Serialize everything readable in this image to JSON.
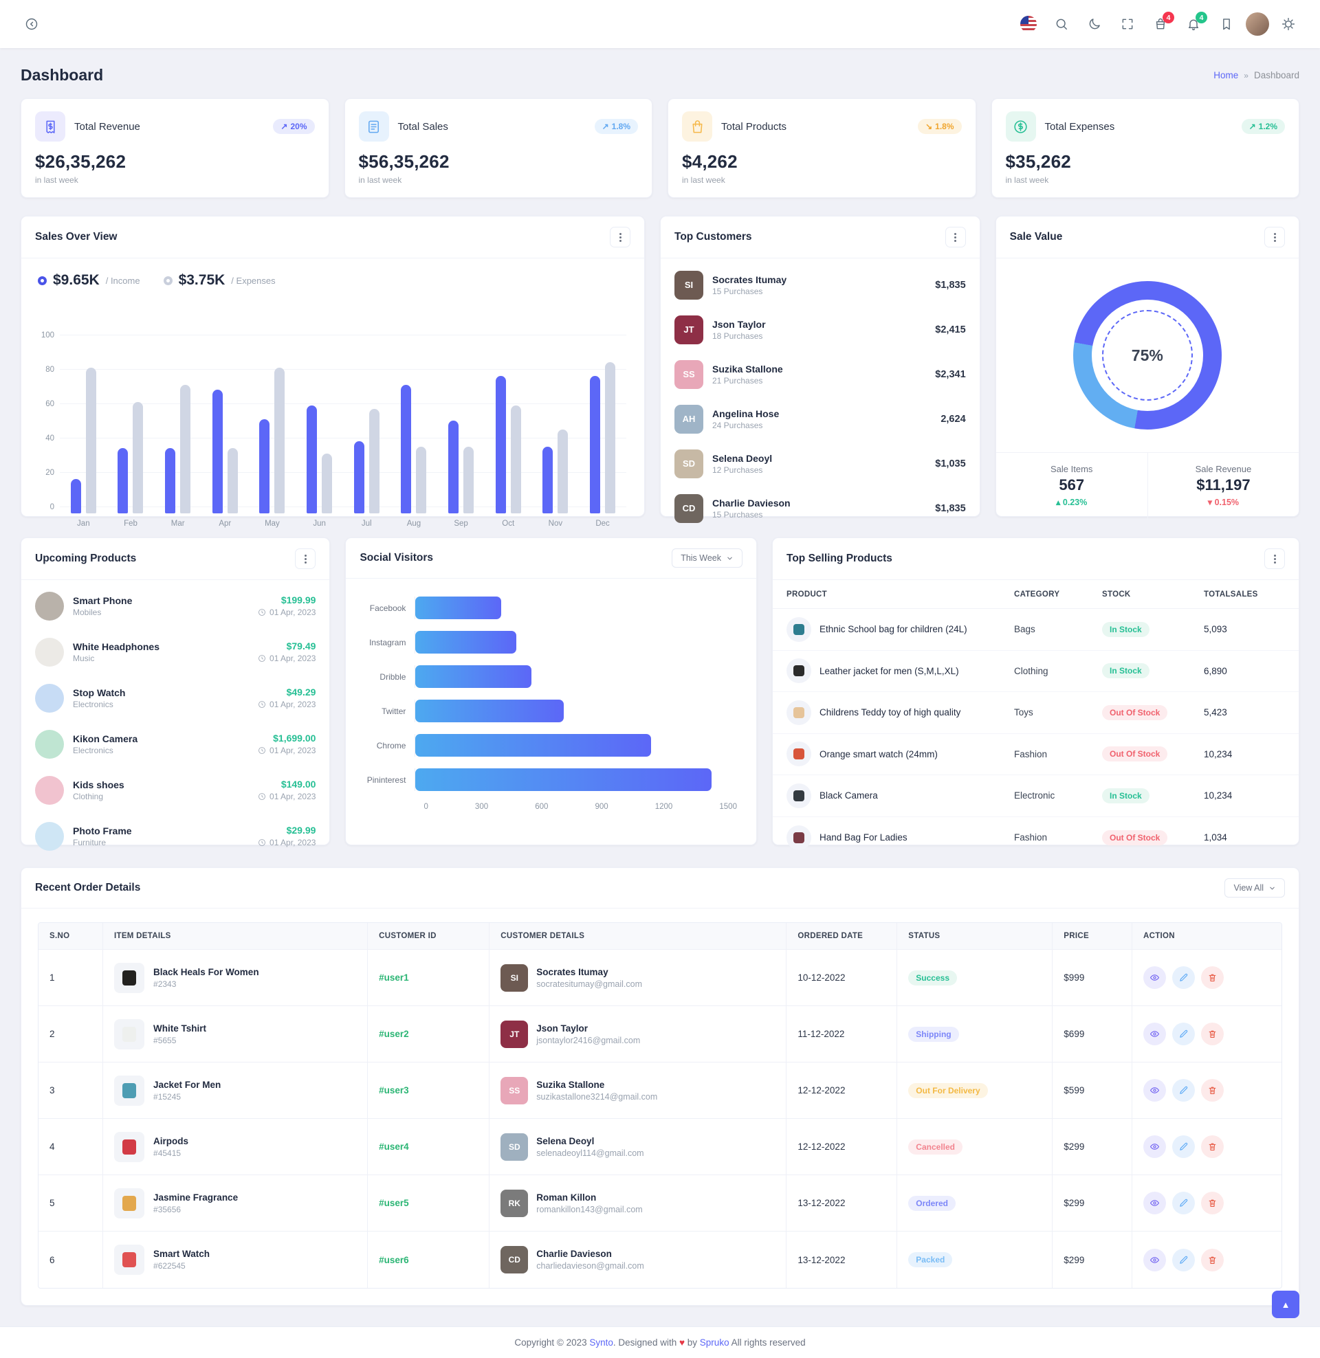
{
  "colors": {
    "primary": "#5c67f7",
    "secondary_blue": "#62a8f1",
    "bar_gray": "#d0d6e4",
    "success": "#26bf94",
    "danger": "#e6533c",
    "warning": "#f5b849",
    "page_bg": "#f0f1f7",
    "cart_badge": "#f5364f",
    "bell_badge": "#24c58b"
  },
  "navbar": {
    "cart_count": "4",
    "notification_count": "4"
  },
  "page": {
    "title": "Dashboard",
    "breadcrumb_home": "Home",
    "breadcrumb_sep": "»",
    "breadcrumb_current": "Dashboard"
  },
  "stats": [
    {
      "title": "Total Revenue",
      "value": "$26,35,262",
      "arrow": "↗",
      "change": "20%",
      "sub": "in last week"
    },
    {
      "title": "Total Sales",
      "value": "$56,35,262",
      "arrow": "↗",
      "change": "1.8%",
      "sub": "in last week"
    },
    {
      "title": "Total Products",
      "value": "$4,262",
      "arrow": "↘",
      "change": "1.8%",
      "sub": "in last week"
    },
    {
      "title": "Total Expenses",
      "value": "$35,262",
      "arrow": "↗",
      "change": "1.2%",
      "sub": "in last week"
    }
  ],
  "sales_overview": {
    "title": "Sales Over View",
    "income_value": "$9.65K",
    "income_suffix": "/ Income",
    "expenses_value": "$3.75K",
    "expenses_suffix": "/ Expenses"
  },
  "top_customers": {
    "title": "Top Customers",
    "items": [
      {
        "name": "Socrates Itumay",
        "purchases": "15 Purchases",
        "amount": "$1,835",
        "avatar": "#6d5a52"
      },
      {
        "name": "Json Taylor",
        "purchases": "18 Purchases",
        "amount": "$2,415",
        "avatar": "#8e2f46"
      },
      {
        "name": "Suzika Stallone",
        "purchases": "21 Purchases",
        "amount": "$2,341",
        "avatar": "#e8a7b8"
      },
      {
        "name": "Angelina Hose",
        "purchases": "24 Purchases",
        "amount": "2,624",
        "avatar": "#9fb4c7"
      },
      {
        "name": "Selena Deoyl",
        "purchases": "12 Purchases",
        "amount": "$1,035",
        "avatar": "#c7b9a5"
      },
      {
        "name": "Charlie Davieson",
        "purchases": "15 Purchases",
        "amount": "$1,835",
        "avatar": "#6f665f"
      }
    ]
  },
  "sale_value": {
    "title": "Sale Value",
    "percent_label": "75%",
    "items_label": "Sale Items",
    "items_value": "567",
    "items_arrow": "▴",
    "items_change": "0.23%",
    "revenue_label": "Sale Revenue",
    "revenue_value": "$11,197",
    "revenue_arrow": "▾",
    "revenue_change": "0.15%"
  },
  "upcoming_products": {
    "title": "Upcoming Products",
    "items": [
      {
        "name": "Smart Phone",
        "category": "Mobiles",
        "price": "$199.99",
        "date": "01 Apr, 2023",
        "thumb": "#b9b2aa"
      },
      {
        "name": "White Headphones",
        "category": "Music",
        "price": "$79.49",
        "date": "01 Apr, 2023",
        "thumb": "#eceae6"
      },
      {
        "name": "Stop Watch",
        "category": "Electronics",
        "price": "$49.29",
        "date": "01 Apr, 2023",
        "thumb": "#c7dcf5"
      },
      {
        "name": "Kikon Camera",
        "category": "Electronics",
        "price": "$1,699.00",
        "date": "01 Apr, 2023",
        "thumb": "#bfe5d2"
      },
      {
        "name": "Kids shoes",
        "category": "Clothing",
        "price": "$149.00",
        "date": "01 Apr, 2023",
        "thumb": "#f1c3cf"
      },
      {
        "name": "Photo Frame",
        "category": "Furniture",
        "price": "$29.99",
        "date": "01 Apr, 2023",
        "thumb": "#cfe6f5"
      }
    ]
  },
  "social_visitors": {
    "title": "Social Visitors",
    "filter_label": "This Week"
  },
  "top_selling": {
    "title": "Top Selling Products",
    "headers": [
      "PRODUCT",
      "CATEGORY",
      "STOCK",
      "TOTALSALES"
    ],
    "rows": [
      {
        "name": "Ethnic School bag for children (24L)",
        "category": "Bags",
        "stock": "In Stock",
        "stock_class": "stock-in",
        "sales": "5,093",
        "thumb": "#2e7d8f"
      },
      {
        "name": "Leather jacket for men (S,M,L,XL)",
        "category": "Clothing",
        "stock": "In Stock",
        "stock_class": "stock-in",
        "sales": "6,890",
        "thumb": "#2b2b2b"
      },
      {
        "name": "Childrens Teddy toy of high quality",
        "category": "Toys",
        "stock": "Out Of Stock",
        "stock_class": "stock-out",
        "sales": "5,423",
        "thumb": "#e6c49a"
      },
      {
        "name": "Orange smart watch (24mm)",
        "category": "Fashion",
        "stock": "Out Of Stock",
        "stock_class": "stock-out",
        "sales": "10,234",
        "thumb": "#d8553a"
      },
      {
        "name": "Black Camera",
        "category": "Electronic",
        "stock": "In Stock",
        "stock_class": "stock-in",
        "sales": "10,234",
        "thumb": "#333a40"
      },
      {
        "name": "Hand Bag For Ladies",
        "category": "Fashion",
        "stock": "Out Of Stock",
        "stock_class": "stock-out",
        "sales": "1,034",
        "thumb": "#7a3b45"
      }
    ]
  },
  "orders": {
    "title": "Recent Order Details",
    "view_all": "View All",
    "headers": [
      "S.NO",
      "ITEM DETAILS",
      "CUSTOMER ID",
      "CUSTOMER DETAILS",
      "ORDERED DATE",
      "STATUS",
      "PRICE",
      "ACTION"
    ],
    "rows": [
      {
        "sno": "1",
        "item": "Black Heals For Women",
        "code": "#2343",
        "thumb": "#23221f",
        "cid": "#user1",
        "name": "Socrates Itumay",
        "email": "socratesitumay@gmail.com",
        "avatar": "#6d5a52",
        "date": "10-12-2022",
        "status": "Success",
        "status_class": "st-success",
        "price": "$999"
      },
      {
        "sno": "2",
        "item": "White Tshirt",
        "code": "#5655",
        "thumb": "#eef0ee",
        "cid": "#user2",
        "name": "Json Taylor",
        "email": "jsontaylor2416@gmail.com",
        "avatar": "#8e2f46",
        "date": "11-12-2022",
        "status": "Shipping",
        "status_class": "st-shipping",
        "price": "$699"
      },
      {
        "sno": "3",
        "item": "Jacket For Men",
        "code": "#15245",
        "thumb": "#4e9db3",
        "cid": "#user3",
        "name": "Suzika Stallone",
        "email": "suzikastallone3214@gmail.com",
        "avatar": "#e8a7b8",
        "date": "12-12-2022",
        "status": "Out For Delivery",
        "status_class": "st-delivery",
        "price": "$599"
      },
      {
        "sno": "4",
        "item": "Airpods",
        "code": "#45415",
        "thumb": "#d23b45",
        "cid": "#user4",
        "name": "Selena Deoyl",
        "email": "selenadeoyl114@gmail.com",
        "avatar": "#9fb0bf",
        "date": "12-12-2022",
        "status": "Cancelled",
        "status_class": "st-cancelled",
        "price": "$299"
      },
      {
        "sno": "5",
        "item": "Jasmine Fragrance",
        "code": "#35656",
        "thumb": "#e3a84e",
        "cid": "#user5",
        "name": "Roman Killon",
        "email": "romankillon143@gmail.com",
        "avatar": "#7b7b7b",
        "date": "13-12-2022",
        "status": "Ordered",
        "status_class": "st-ordered",
        "price": "$299"
      },
      {
        "sno": "6",
        "item": "Smart Watch",
        "code": "#622545",
        "thumb": "#e05252",
        "cid": "#user6",
        "name": "Charlie Davieson",
        "email": "charliedavieson@gmail.com",
        "avatar": "#6f665f",
        "date": "13-12-2022",
        "status": "Packed",
        "status_class": "st-packed",
        "price": "$299"
      }
    ]
  },
  "footer": {
    "prefix": "Copyright © 2023",
    "brand": "Synto",
    "middle": ". Designed with",
    "heart": "♥",
    "by": "by",
    "company": "Spruko",
    "suffix": "All rights reserved"
  },
  "chart_data": [
    {
      "type": "bar",
      "title": "Sales Over View",
      "categories": [
        "Jan",
        "Feb",
        "Mar",
        "Apr",
        "May",
        "Jun",
        "Jul",
        "Aug",
        "Sep",
        "Oct",
        "Nov",
        "Dec"
      ],
      "series": [
        {
          "name": "Income",
          "color": "#5c67f7",
          "values": [
            20,
            38,
            38,
            72,
            55,
            63,
            42,
            75,
            54,
            80,
            39,
            80
          ]
        },
        {
          "name": "Expenses",
          "color": "#d0d6e4",
          "values": [
            85,
            65,
            75,
            38,
            85,
            35,
            61,
            39,
            39,
            63,
            49,
            88
          ]
        }
      ],
      "ylim": [
        0,
        100
      ],
      "yticks": [
        0,
        20,
        40,
        60,
        80,
        100
      ],
      "grid": true,
      "legend_position": "top-left"
    },
    {
      "type": "bar",
      "orientation": "horizontal",
      "title": "Social Visitors",
      "categories": [
        "Facebook",
        "Instagram",
        "Dribble",
        "Twitter",
        "Chrome",
        "Pininterest"
      ],
      "values": [
        400,
        470,
        540,
        690,
        1100,
        1380
      ],
      "xlim": [
        0,
        1500
      ],
      "xticks": [
        0,
        300,
        600,
        900,
        1200,
        1500
      ],
      "bar_gradient": [
        "#4da9f0",
        "#5c67f7"
      ]
    },
    {
      "type": "donut",
      "title": "Sale Value",
      "value": 75,
      "label": "75%",
      "segments": [
        {
          "color": "#5c67f7",
          "from": 0,
          "to": 190
        },
        {
          "color": "#62aef2",
          "from": 190,
          "to": 280
        },
        {
          "color": "#5c67f7",
          "from": 280,
          "to": 360
        }
      ]
    }
  ]
}
